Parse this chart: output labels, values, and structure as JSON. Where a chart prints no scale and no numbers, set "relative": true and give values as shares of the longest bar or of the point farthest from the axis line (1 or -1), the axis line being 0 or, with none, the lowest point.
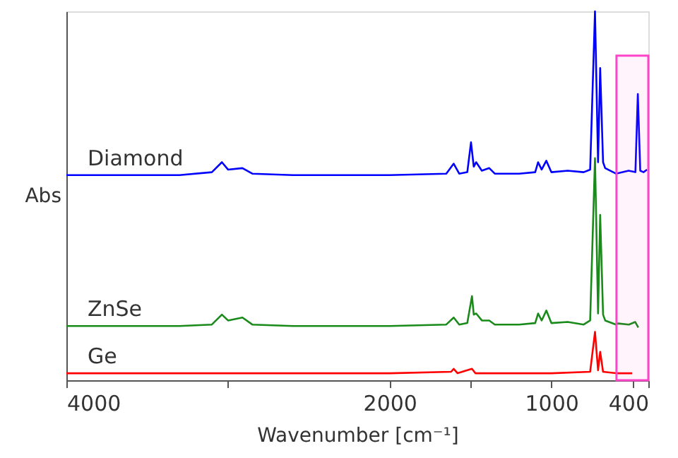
{
  "chart_data": {
    "type": "line",
    "relative": true,
    "xlabel": "Wavenumber [cm⁻¹]",
    "ylabel": "Abs",
    "xlim": [
      4000,
      400
    ],
    "xticks": [
      4000,
      {
        "value": 3000,
        "label": null
      },
      2000,
      {
        "value": 1500,
        "label": null
      },
      1000,
      {
        "value": 500,
        "label": null
      },
      400
    ],
    "grid": false,
    "marker": "none",
    "line_style": "solid",
    "bands": [
      {
        "axis": "x",
        "from": 597,
        "to": 400,
        "label": null,
        "color": "#ff44cc"
      }
    ],
    "series": [
      {
        "name": "Diamond",
        "color": "#0000ff",
        "x": [
          4000,
          3300,
          3100,
          3038,
          3000,
          2911,
          2850,
          2600,
          2000,
          1650,
          1604,
          1570,
          1520,
          1497,
          1480,
          1465,
          1430,
          1384,
          1350,
          1200,
          1100,
          1082,
          1060,
          1031,
          1000,
          899,
          800,
          760,
          730,
          711,
          698,
          680,
          667,
          600,
          522,
          480,
          465,
          450,
          430,
          408
        ],
        "values": [
          0.556,
          0.556,
          0.564,
          0.591,
          0.571,
          0.575,
          0.56,
          0.556,
          0.556,
          0.56,
          0.587,
          0.56,
          0.564,
          0.645,
          0.579,
          0.591,
          0.568,
          0.575,
          0.56,
          0.56,
          0.564,
          0.591,
          0.571,
          0.595,
          0.564,
          0.568,
          0.564,
          0.571,
          1.0,
          0.591,
          0.846,
          0.591,
          0.575,
          0.56,
          0.568,
          0.564,
          0.776,
          0.568,
          0.564,
          0.571
        ]
      },
      {
        "name": "ZnSe",
        "color": "#1a8a1a",
        "x": [
          4000,
          3300,
          3100,
          3038,
          3000,
          2911,
          2850,
          2600,
          2000,
          1650,
          1604,
          1570,
          1520,
          1491,
          1480,
          1465,
          1430,
          1384,
          1350,
          1200,
          1100,
          1082,
          1060,
          1031,
          1000,
          899,
          800,
          760,
          730,
          711,
          698,
          680,
          667,
          600,
          588,
          520,
          481,
          462
        ],
        "values": [
          0.147,
          0.147,
          0.151,
          0.178,
          0.162,
          0.17,
          0.151,
          0.147,
          0.147,
          0.151,
          0.17,
          0.151,
          0.155,
          0.228,
          0.178,
          0.181,
          0.162,
          0.162,
          0.151,
          0.151,
          0.155,
          0.181,
          0.162,
          0.189,
          0.155,
          0.158,
          0.151,
          0.162,
          0.602,
          0.181,
          0.448,
          0.178,
          0.162,
          0.151,
          0.154,
          0.151,
          0.158,
          0.143
        ]
      },
      {
        "name": "Ge",
        "color": "#ff0000",
        "x": [
          4000,
          2000,
          1620,
          1604,
          1580,
          1491,
          1470,
          1000,
          760,
          730,
          711,
          698,
          680,
          600,
          500
        ],
        "values": [
          0.019,
          0.019,
          0.023,
          0.031,
          0.019,
          0.031,
          0.019,
          0.019,
          0.023,
          0.131,
          0.027,
          0.077,
          0.023,
          0.019,
          0.019
        ]
      }
    ]
  }
}
